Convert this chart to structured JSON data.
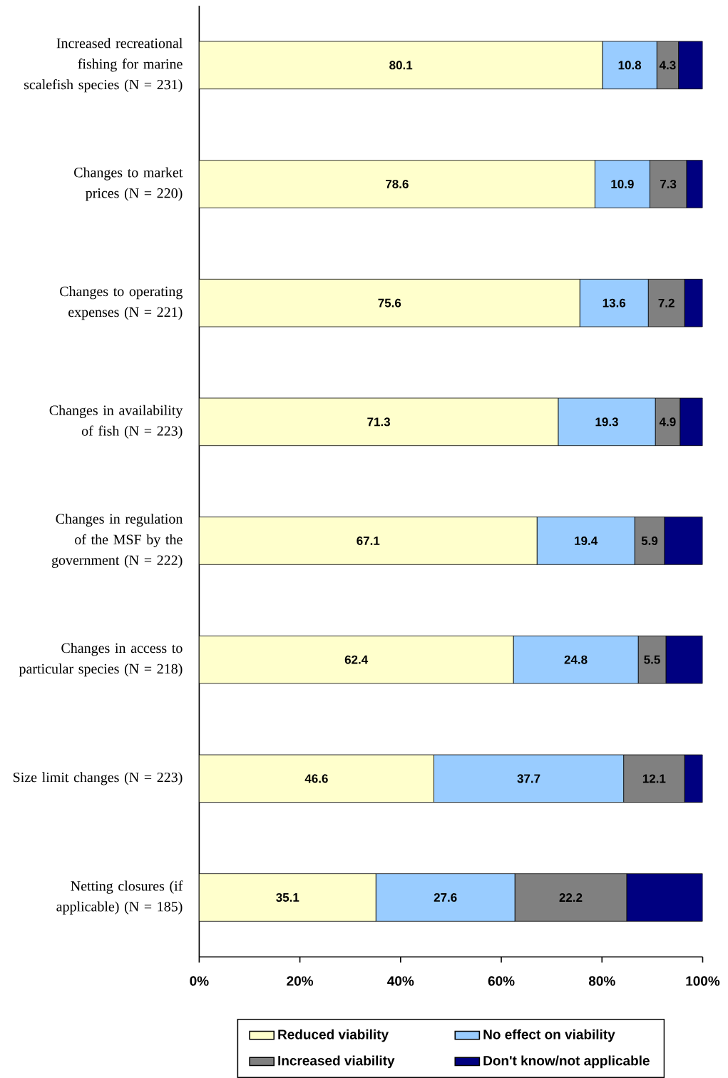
{
  "chart_data": {
    "type": "bar",
    "orientation": "horizontal",
    "stacked": true,
    "categories": [
      "Increased recreational fishing for marine scalefish species (N = 231)",
      "Changes to market prices (N = 220)",
      "Changes to operating expenses (N = 221)",
      "Changes in availability of fish (N = 223)",
      "Changes in regulation of the MSF by the government (N = 222)",
      "Changes in access to particular species (N = 218)",
      "Size limit changes (N = 223)",
      "Netting closures (if applicable) (N = 185)"
    ],
    "series": [
      {
        "name": "Reduced viability",
        "color": "#ffffcc",
        "values": [
          80.1,
          78.6,
          75.6,
          71.3,
          67.1,
          62.4,
          46.6,
          35.1
        ],
        "value_labels": [
          "80.1",
          "78.6",
          "75.6",
          "71.3",
          "67.1",
          "62.4",
          "46.6",
          "35.1"
        ]
      },
      {
        "name": "No effect on viability",
        "color": "#99ccff",
        "values": [
          10.8,
          10.9,
          13.6,
          19.3,
          19.4,
          24.8,
          37.7,
          27.6
        ],
        "value_labels": [
          "10.8",
          "10.9",
          "13.6",
          "19.3",
          "19.4",
          "24.8",
          "37.7",
          "27.6"
        ]
      },
      {
        "name": "Increased viability",
        "color": "#808080",
        "values": [
          4.3,
          7.3,
          7.2,
          4.9,
          5.9,
          5.5,
          12.1,
          22.2
        ],
        "value_labels": [
          "4.3",
          "7.3",
          "7.2",
          "4.9",
          "5.9",
          "5.5",
          "12.1",
          "22.2"
        ]
      },
      {
        "name": "Don't know/not applicable",
        "color": "#000080",
        "values": [
          4.8,
          3.2,
          3.6,
          4.5,
          7.6,
          7.3,
          3.6,
          15.1
        ]
      }
    ],
    "xlim": [
      0,
      100
    ],
    "xticks": [
      {
        "value": 0,
        "label": "0%"
      },
      {
        "value": 20,
        "label": "20%"
      },
      {
        "value": 40,
        "label": "40%"
      },
      {
        "value": 60,
        "label": "60%"
      },
      {
        "value": 80,
        "label": "80%"
      },
      {
        "value": 100,
        "label": "100%"
      }
    ],
    "legend": "bottom"
  }
}
